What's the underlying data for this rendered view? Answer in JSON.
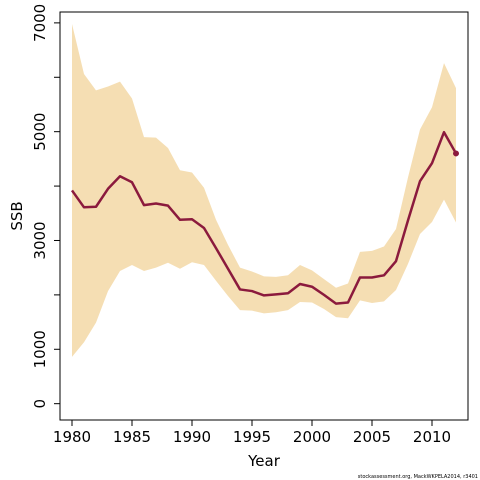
{
  "chart_data": {
    "type": "line",
    "xlabel": "Year",
    "ylabel": "SSB",
    "xlim": [
      1979,
      2013
    ],
    "ylim": [
      -300,
      7200
    ],
    "x_ticks": [
      1980,
      1985,
      1990,
      1995,
      2000,
      2005,
      2010
    ],
    "y_ticks": [
      0,
      1000,
      3000,
      5000,
      7000
    ],
    "y_minor_ticks": [
      2000,
      4000,
      6000
    ],
    "x_tick_labels": [
      "1980",
      "1985",
      "1990",
      "1995",
      "2000",
      "2005",
      "2010"
    ],
    "y_tick_labels": [
      "0",
      "1000",
      "3000",
      "5000",
      "7000"
    ],
    "credit": "stockassessment.org, MackWKPELA2014, r3401",
    "colors": {
      "line": "#8b1a3d",
      "band": "#f5deb3",
      "axis": "#000000"
    },
    "x": [
      1980,
      1981,
      1982,
      1983,
      1984,
      1985,
      1986,
      1987,
      1988,
      1989,
      1990,
      1991,
      1992,
      1993,
      1994,
      1995,
      1996,
      1997,
      1998,
      1999,
      2000,
      2001,
      2002,
      2003,
      2004,
      2005,
      2006,
      2007,
      2008,
      2009,
      2010,
      2011,
      2012
    ],
    "series": [
      {
        "values": [
          3920,
          3610,
          3620,
          3950,
          4180,
          4070,
          3650,
          3680,
          3640,
          3380,
          3390,
          3230,
          2860,
          2480,
          2100,
          2070,
          1990,
          2010,
          2030,
          2200,
          2150,
          2000,
          1840,
          1860,
          2320,
          2320,
          2360,
          2620,
          3370,
          4090,
          4420,
          4990,
          4600
        ]
      }
    ],
    "band": {
      "lower": [
        860,
        1130,
        1490,
        2070,
        2440,
        2550,
        2440,
        2500,
        2590,
        2480,
        2600,
        2550,
        2260,
        1980,
        1720,
        1710,
        1660,
        1680,
        1720,
        1870,
        1860,
        1740,
        1590,
        1570,
        1900,
        1850,
        1880,
        2090,
        2570,
        3120,
        3340,
        3750,
        3330
      ],
      "upper": [
        6980,
        6060,
        5760,
        5830,
        5920,
        5610,
        4900,
        4890,
        4700,
        4290,
        4250,
        3970,
        3380,
        2920,
        2500,
        2430,
        2340,
        2330,
        2360,
        2550,
        2450,
        2290,
        2130,
        2210,
        2790,
        2810,
        2890,
        3210,
        4160,
        5040,
        5450,
        6260,
        5800
      ]
    }
  }
}
